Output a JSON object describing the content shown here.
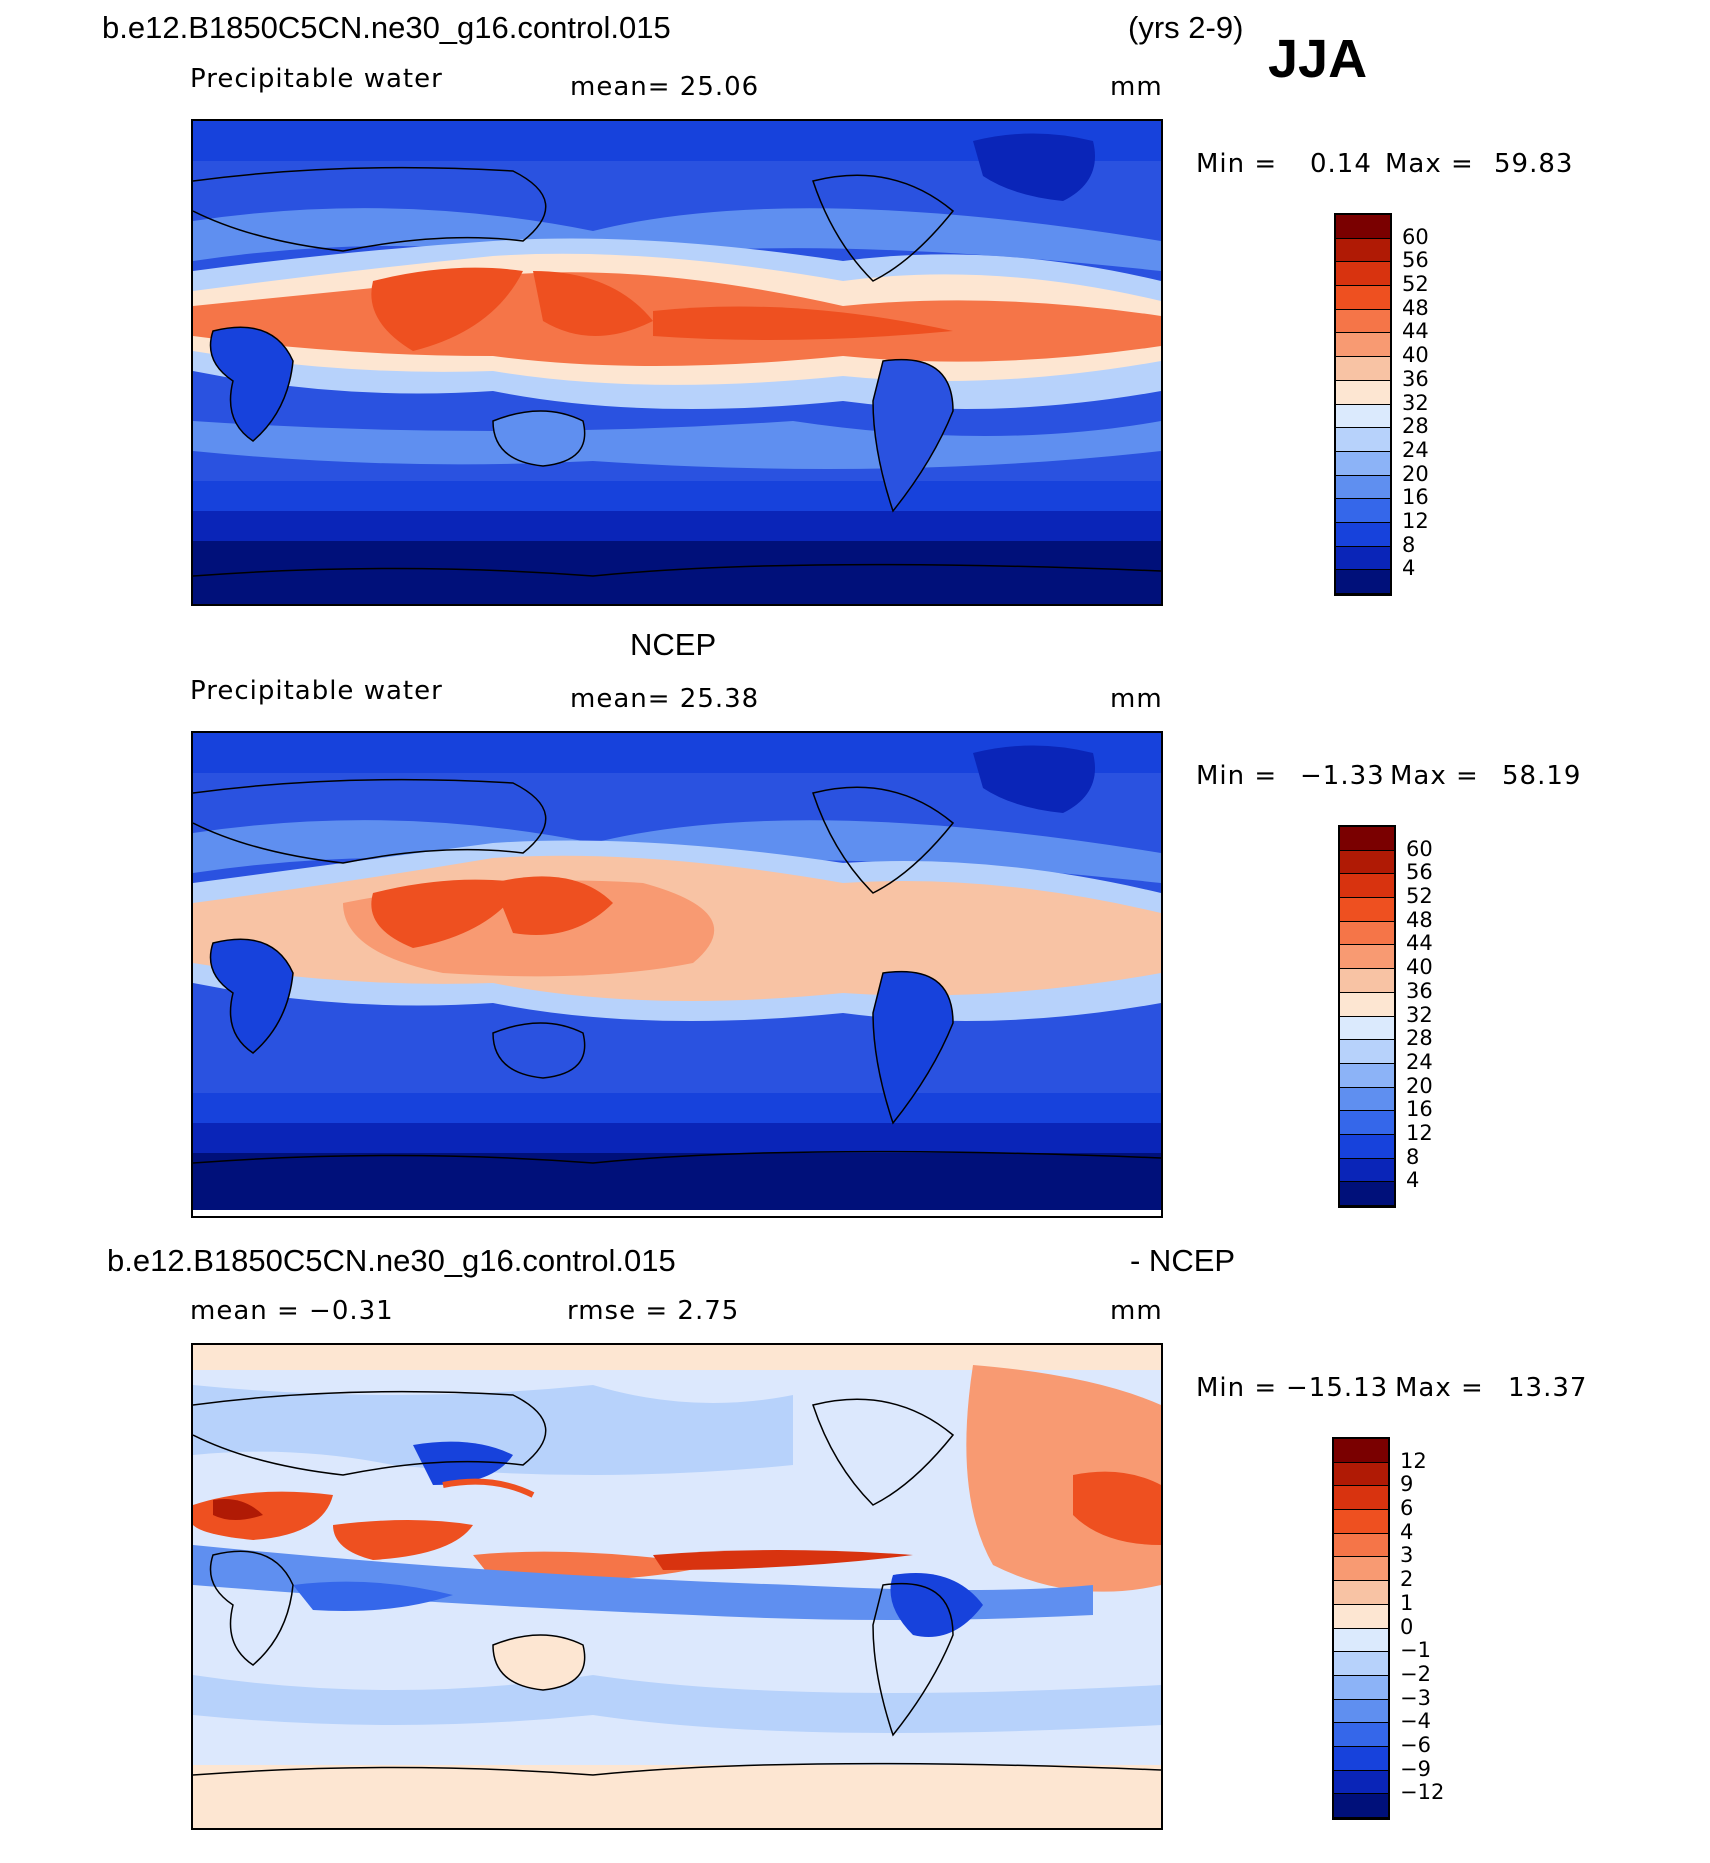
{
  "header": {
    "case": "b.e12.B1850C5CN.ne30_g16.control.015",
    "years": "(yrs 2-9)",
    "season": "JJA"
  },
  "panel1": {
    "variable": "Precipitable water",
    "mean": "mean=   25.06",
    "units": "mm",
    "minmax_label_min": "Min  =",
    "minmax_min": "0.14",
    "minmax_label_max": "Max  =",
    "minmax_max": "59.83",
    "colorbar_labels": [
      "60",
      "56",
      "52",
      "48",
      "44",
      "40",
      "36",
      "32",
      "28",
      "24",
      "20",
      "16",
      "12",
      "8",
      "4"
    ]
  },
  "panel2": {
    "title": "NCEP",
    "variable": "Precipitable water",
    "mean": "mean=   25.38",
    "units": "mm",
    "minmax_label_min": "Min  =",
    "minmax_min": "−1.33",
    "minmax_label_max": "Max  =",
    "minmax_max": "58.19",
    "colorbar_labels": [
      "60",
      "56",
      "52",
      "48",
      "44",
      "40",
      "36",
      "32",
      "28",
      "24",
      "20",
      "16",
      "12",
      "8",
      "4"
    ]
  },
  "panel3": {
    "case": "b.e12.B1850C5CN.ne30_g16.control.015",
    "minus": "- NCEP",
    "mean": "mean  =    −0.31",
    "rmse": "rmse  =     2.75",
    "units": "mm",
    "minmax_label_min": "Min  =",
    "minmax_min": "−15.13",
    "minmax_label_max": "Max  =",
    "minmax_max": "13.37",
    "colorbar_labels": [
      "12",
      "9",
      "6",
      "4",
      "3",
      "2",
      "1",
      "0",
      "−1",
      "−2",
      "−3",
      "−4",
      "−6",
      "−9",
      "−12"
    ]
  },
  "colors": {
    "scale": [
      "#7a0000",
      "#b01a05",
      "#d8330f",
      "#ee5020",
      "#f57548",
      "#f89a72",
      "#f8c3a4",
      "#fde6d2",
      "#dbeafd",
      "#b7d2fb",
      "#8cb3f7",
      "#5f8ff0",
      "#3567ea",
      "#1742dc",
      "#0a25b8",
      "#00107a"
    ],
    "ocean_base": "#2a52e0",
    "diff_base": "#dce8fd"
  }
}
